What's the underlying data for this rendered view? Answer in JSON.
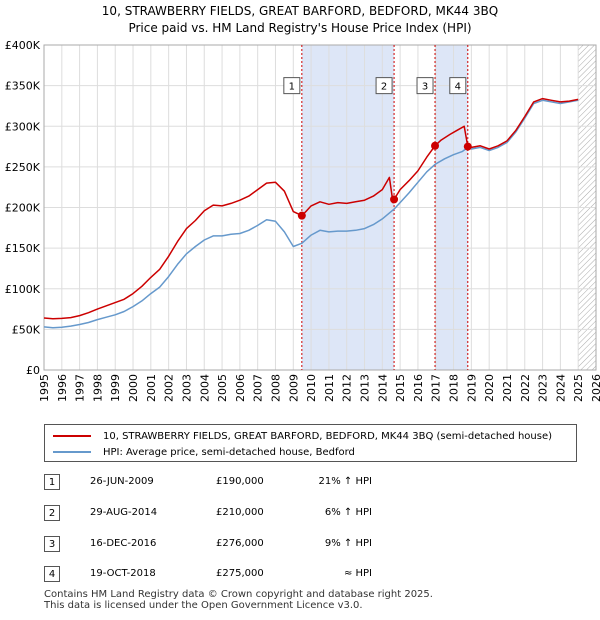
{
  "title_line1": "10, STRAWBERRY FIELDS, GREAT BARFORD, BEDFORD, MK44 3BQ",
  "title_line2": "Price paid vs. HM Land Registry's House Price Index (HPI)",
  "legend": {
    "property_label": "10, STRAWBERRY FIELDS, GREAT BARFORD, BEDFORD, MK44 3BQ (semi-detached house)",
    "hpi_label": "HPI: Average price, semi-detached house, Bedford"
  },
  "transactions": [
    {
      "num": "1",
      "date": "26-JUN-2009",
      "price": "£190,000",
      "hpi": "21% ↑ HPI"
    },
    {
      "num": "2",
      "date": "29-AUG-2014",
      "price": "£210,000",
      "hpi": "6% ↑ HPI"
    },
    {
      "num": "3",
      "date": "16-DEC-2016",
      "price": "£276,000",
      "hpi": "9% ↑ HPI"
    },
    {
      "num": "4",
      "date": "19-OCT-2018",
      "price": "£275,000",
      "hpi": "≈ HPI"
    }
  ],
  "footer_line1": "Contains HM Land Registry data © Crown copyright and database right 2025.",
  "footer_line2": "This data is licensed under the Open Government Licence v3.0.",
  "colors": {
    "property": "#cc0000",
    "hpi": "#6699cc",
    "shade": "#dde6f7",
    "grid": "#dddddd"
  },
  "chart_data": {
    "type": "line",
    "x_range": [
      1995,
      2026
    ],
    "y_range": [
      0,
      400000
    ],
    "y_ticks": [
      0,
      50000,
      100000,
      150000,
      200000,
      250000,
      300000,
      350000,
      400000
    ],
    "y_tick_labels": [
      "£0",
      "£50K",
      "£100K",
      "£150K",
      "£200K",
      "£250K",
      "£300K",
      "£350K",
      "£400K"
    ],
    "x_ticks": [
      1995,
      1996,
      1997,
      1998,
      1999,
      2000,
      2001,
      2002,
      2003,
      2004,
      2005,
      2006,
      2007,
      2008,
      2009,
      2010,
      2011,
      2012,
      2013,
      2014,
      2015,
      2016,
      2017,
      2018,
      2019,
      2020,
      2021,
      2022,
      2023,
      2024,
      2025,
      2026
    ],
    "x_tick_labels": [
      "1995",
      "1996",
      "1997",
      "1998",
      "1999",
      "2000",
      "2001",
      "2002",
      "2003",
      "2004",
      "2005",
      "2006",
      "2007",
      "2008",
      "2009",
      "2010",
      "2011",
      "2012",
      "2013",
      "2014",
      "2015",
      "2016",
      "2017",
      "2018",
      "2019",
      "2020",
      "2021",
      "2022",
      "2023",
      "2024",
      "2025",
      "2026"
    ],
    "future_start": 2025.0,
    "shaded_ranges": [
      [
        2009.48,
        2014.66
      ],
      [
        2016.96,
        2018.8
      ]
    ],
    "sales": [
      {
        "label": "1",
        "x": 2009.48,
        "y": 190000
      },
      {
        "label": "2",
        "x": 2014.66,
        "y": 210000
      },
      {
        "label": "3",
        "x": 2016.96,
        "y": 276000
      },
      {
        "label": "4",
        "x": 2018.8,
        "y": 275000
      }
    ],
    "marker_label_y": 350000,
    "series": [
      {
        "name": "10, STRAWBERRY FIELDS, GREAT BARFORD, BEDFORD, MK44 3BQ (semi-detached house)",
        "color": "#cc0000",
        "points": [
          [
            1995.0,
            64000
          ],
          [
            1995.5,
            63000
          ],
          [
            1996.0,
            63500
          ],
          [
            1996.5,
            64500
          ],
          [
            1997.0,
            67000
          ],
          [
            1997.5,
            70500
          ],
          [
            1998.0,
            75000
          ],
          [
            1998.5,
            79000
          ],
          [
            1999.0,
            83000
          ],
          [
            1999.5,
            87000
          ],
          [
            2000.0,
            94000
          ],
          [
            2000.5,
            103000
          ],
          [
            2001.0,
            114000
          ],
          [
            2001.5,
            124000
          ],
          [
            2002.0,
            140000
          ],
          [
            2002.5,
            158000
          ],
          [
            2003.0,
            174000
          ],
          [
            2003.5,
            184000
          ],
          [
            2004.0,
            196000
          ],
          [
            2004.5,
            203000
          ],
          [
            2005.0,
            202000
          ],
          [
            2005.5,
            205000
          ],
          [
            2006.0,
            209000
          ],
          [
            2006.5,
            214000
          ],
          [
            2007.0,
            222000
          ],
          [
            2007.5,
            230000
          ],
          [
            2008.0,
            231000
          ],
          [
            2008.5,
            220000
          ],
          [
            2009.0,
            195000
          ],
          [
            2009.48,
            190000
          ],
          [
            2009.75,
            196000
          ],
          [
            2010.0,
            202000
          ],
          [
            2010.5,
            207000
          ],
          [
            2011.0,
            204000
          ],
          [
            2011.5,
            206000
          ],
          [
            2012.0,
            205000
          ],
          [
            2012.5,
            207000
          ],
          [
            2013.0,
            209000
          ],
          [
            2013.5,
            214000
          ],
          [
            2014.0,
            222000
          ],
          [
            2014.4,
            237000
          ],
          [
            2014.6,
            206000
          ],
          [
            2014.66,
            210000
          ],
          [
            2015.0,
            222000
          ],
          [
            2015.5,
            233000
          ],
          [
            2016.0,
            245000
          ],
          [
            2016.5,
            262000
          ],
          [
            2016.96,
            276000
          ],
          [
            2017.3,
            283000
          ],
          [
            2017.8,
            290000
          ],
          [
            2018.2,
            295000
          ],
          [
            2018.6,
            300000
          ],
          [
            2018.8,
            275000
          ],
          [
            2019.0,
            274000
          ],
          [
            2019.5,
            276000
          ],
          [
            2020.0,
            272000
          ],
          [
            2020.5,
            276000
          ],
          [
            2021.0,
            282000
          ],
          [
            2021.5,
            295000
          ],
          [
            2022.0,
            312000
          ],
          [
            2022.5,
            330000
          ],
          [
            2023.0,
            334000
          ],
          [
            2023.5,
            332000
          ],
          [
            2024.0,
            330000
          ],
          [
            2024.5,
            331000
          ],
          [
            2025.0,
            333000
          ]
        ]
      },
      {
        "name": "HPI: Average price, semi-detached house, Bedford",
        "color": "#6699cc",
        "points": [
          [
            1995.0,
            53000
          ],
          [
            1995.5,
            52000
          ],
          [
            1996.0,
            52500
          ],
          [
            1996.5,
            54000
          ],
          [
            1997.0,
            56000
          ],
          [
            1997.5,
            58500
          ],
          [
            1998.0,
            62000
          ],
          [
            1998.5,
            65000
          ],
          [
            1999.0,
            68000
          ],
          [
            1999.5,
            72000
          ],
          [
            2000.0,
            78000
          ],
          [
            2000.5,
            85000
          ],
          [
            2001.0,
            94000
          ],
          [
            2001.5,
            102000
          ],
          [
            2002.0,
            115000
          ],
          [
            2002.5,
            130000
          ],
          [
            2003.0,
            143000
          ],
          [
            2003.5,
            152000
          ],
          [
            2004.0,
            160000
          ],
          [
            2004.5,
            165000
          ],
          [
            2005.0,
            165000
          ],
          [
            2005.5,
            167000
          ],
          [
            2006.0,
            168000
          ],
          [
            2006.5,
            172000
          ],
          [
            2007.0,
            178000
          ],
          [
            2007.5,
            185000
          ],
          [
            2008.0,
            183000
          ],
          [
            2008.5,
            170000
          ],
          [
            2009.0,
            152000
          ],
          [
            2009.48,
            156000
          ],
          [
            2010.0,
            166000
          ],
          [
            2010.5,
            172000
          ],
          [
            2011.0,
            170000
          ],
          [
            2011.5,
            171000
          ],
          [
            2012.0,
            171000
          ],
          [
            2012.5,
            172000
          ],
          [
            2013.0,
            174000
          ],
          [
            2013.5,
            179000
          ],
          [
            2014.0,
            186000
          ],
          [
            2014.66,
            198000
          ],
          [
            2015.0,
            206000
          ],
          [
            2015.5,
            218000
          ],
          [
            2016.0,
            231000
          ],
          [
            2016.5,
            244000
          ],
          [
            2016.96,
            253000
          ],
          [
            2017.5,
            260000
          ],
          [
            2018.0,
            265000
          ],
          [
            2018.5,
            269000
          ],
          [
            2018.8,
            274000
          ],
          [
            2019.0,
            272000
          ],
          [
            2019.5,
            274000
          ],
          [
            2020.0,
            270000
          ],
          [
            2020.5,
            274000
          ],
          [
            2021.0,
            280000
          ],
          [
            2021.5,
            293000
          ],
          [
            2022.0,
            310000
          ],
          [
            2022.5,
            328000
          ],
          [
            2023.0,
            332000
          ],
          [
            2023.5,
            330000
          ],
          [
            2024.0,
            328000
          ],
          [
            2024.5,
            330000
          ],
          [
            2025.0,
            332000
          ]
        ]
      }
    ]
  }
}
